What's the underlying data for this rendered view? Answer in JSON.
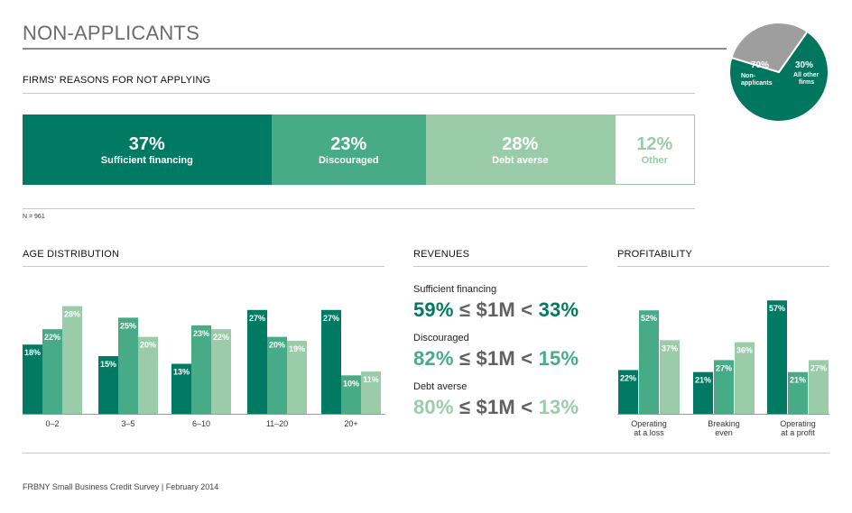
{
  "title": "NON-APPLICANTS",
  "pie": {
    "slices": [
      {
        "pct": "70%",
        "label_line1": "Non-",
        "label_line2": "applicants",
        "value": 70,
        "color": "#00765f"
      },
      {
        "pct": "30%",
        "label_line1": "All other",
        "label_line2": "firms",
        "value": 30,
        "color": "#9e9e9e"
      }
    ]
  },
  "reasons": {
    "heading": "FIRMS' REASONS FOR NOT APPLYING",
    "segments": [
      {
        "pct": "37%",
        "label": "Sufficient financing",
        "value": 37,
        "color": "#007a62"
      },
      {
        "pct": "23%",
        "label": "Discouraged",
        "value": 23,
        "color": "#48ab87"
      },
      {
        "pct": "28%",
        "label": "Debt averse",
        "value": 28,
        "color": "#9bcca9"
      },
      {
        "pct": "12%",
        "label": "Other",
        "value": 12,
        "color": "#ffffff"
      }
    ],
    "n_note": "N = 961"
  },
  "age": {
    "heading": "AGE DISTRIBUTION"
  },
  "revenues": {
    "heading": "REVENUES",
    "items": [
      {
        "label": "Sufficient financing",
        "left": "59%",
        "mid": " ≤ $1M < ",
        "right": "33%",
        "color": "#007a62"
      },
      {
        "label": "Discouraged",
        "left": "82%",
        "mid": " ≤ $1M < ",
        "right": "15%",
        "color": "#48ab87"
      },
      {
        "label": "Debt averse",
        "left": "80%",
        "mid": " ≤ $1M < ",
        "right": "13%",
        "color": "#9bcca9"
      }
    ]
  },
  "profitability": {
    "heading": "PROFITABILITY"
  },
  "chart_data": [
    {
      "type": "bar",
      "title": "AGE DISTRIBUTION",
      "categories": [
        "0–2",
        "3–5",
        "6–10",
        "11–20",
        "20+"
      ],
      "series": [
        {
          "values": [
            18,
            15,
            13,
            27,
            27
          ],
          "color": "#007a62"
        },
        {
          "values": [
            22,
            25,
            23,
            20,
            10
          ],
          "color": "#48ab87"
        },
        {
          "values": [
            28,
            20,
            22,
            19,
            11
          ],
          "color": "#9bcca9"
        }
      ],
      "value_suffix": "%",
      "ylim": [
        0,
        30
      ]
    },
    {
      "type": "bar",
      "title": "PROFITABILITY",
      "categories": [
        "Operating|at a loss",
        "Breaking|even",
        "Operating|at a profit"
      ],
      "series": [
        {
          "values": [
            22,
            21,
            57
          ],
          "color": "#007a62"
        },
        {
          "values": [
            52,
            27,
            21
          ],
          "color": "#48ab87"
        },
        {
          "values": [
            37,
            36,
            27
          ],
          "color": "#9bcca9"
        }
      ],
      "value_suffix": "%",
      "ylim": [
        0,
        58
      ]
    }
  ],
  "footer": "FRBNY Small Business Credit Survey  |  February 2014"
}
